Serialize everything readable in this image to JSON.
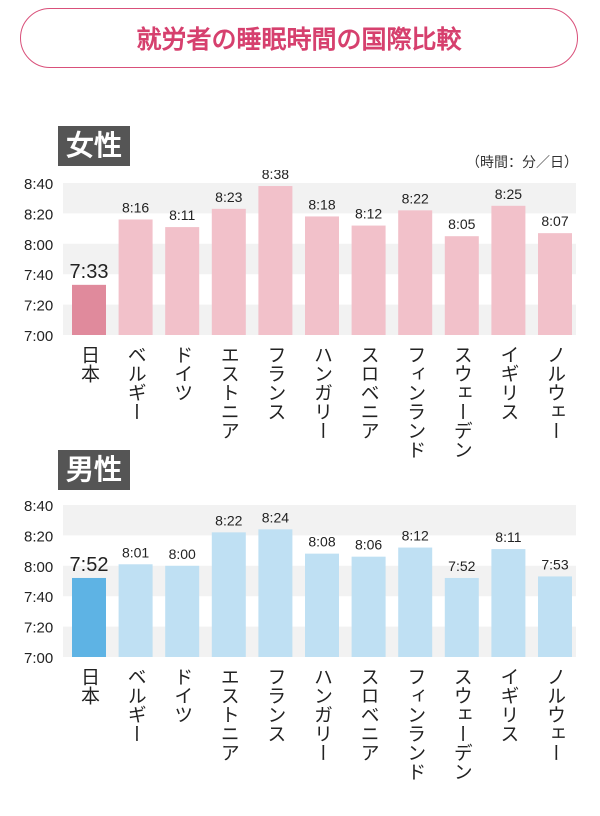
{
  "title": "就労者の睡眠時間の国際比較",
  "unit_note": "（時間：分／日）",
  "chart_data": [
    {
      "type": "bar",
      "title": "女性",
      "categories": [
        "日本",
        "ベルギー",
        "ドイツ",
        "エストニア",
        "フランス",
        "ハンガリー",
        "スロベニア",
        "フィンランド",
        "スウェーデン",
        "イギリス",
        "ノルウェー"
      ],
      "values": [
        453,
        496,
        491,
        503,
        518,
        498,
        492,
        502,
        485,
        505,
        487
      ],
      "value_labels": [
        "7:33",
        "8:16",
        "8:11",
        "8:23",
        "8:38",
        "8:18",
        "8:12",
        "8:22",
        "8:05",
        "8:25",
        "8:07"
      ],
      "yticks": [
        "7:00",
        "7:20",
        "7:40",
        "8:00",
        "8:20",
        "8:40"
      ],
      "ylim_minutes": [
        420,
        520
      ],
      "highlight_color": "#e08a9c",
      "bar_color": "#f2c1ca"
    },
    {
      "type": "bar",
      "title": "男性",
      "categories": [
        "日本",
        "ベルギー",
        "ドイツ",
        "エストニア",
        "フランス",
        "ハンガリー",
        "スロベニア",
        "フィンランド",
        "スウェーデン",
        "イギリス",
        "ノルウェー"
      ],
      "values": [
        472,
        481,
        480,
        502,
        504,
        488,
        486,
        492,
        472,
        491,
        473
      ],
      "value_labels": [
        "7:52",
        "8:01",
        "8:00",
        "8:22",
        "8:24",
        "8:08",
        "8:06",
        "8:12",
        "7:52",
        "8:11",
        "7:53"
      ],
      "yticks": [
        "7:00",
        "7:20",
        "7:40",
        "8:00",
        "8:20",
        "8:40"
      ],
      "ylim_minutes": [
        420,
        520
      ],
      "highlight_color": "#5eb3e4",
      "bar_color": "#bfe0f3"
    }
  ]
}
